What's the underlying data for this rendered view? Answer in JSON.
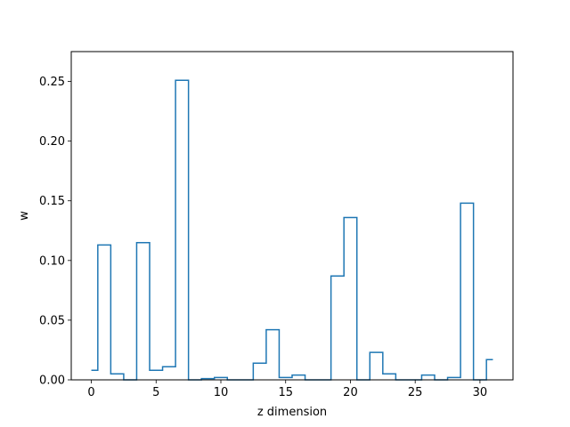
{
  "chart_data": {
    "type": "line",
    "style": "step",
    "xlabel": "z dimension",
    "ylabel": "w",
    "xlim": [
      -1.55,
      32.55
    ],
    "ylim": [
      0,
      0.275
    ],
    "grid": false,
    "line_color": "#1f77b4",
    "x_ticks": [
      0,
      5,
      10,
      15,
      20,
      25,
      30
    ],
    "y_ticks": [
      0.0,
      0.05,
      0.1,
      0.15,
      0.2,
      0.25
    ],
    "x_tick_labels": [
      "0",
      "5",
      "10",
      "15",
      "20",
      "25",
      "30"
    ],
    "y_tick_labels": [
      "0.00",
      "0.05",
      "0.10",
      "0.15",
      "0.20",
      "0.25"
    ],
    "series": [
      {
        "x": [
          0,
          1,
          2,
          3,
          4,
          5,
          6,
          7,
          8,
          9,
          10,
          11,
          12,
          13,
          14,
          15,
          16,
          17,
          18,
          19,
          20,
          21,
          22,
          23,
          24,
          25,
          26,
          27,
          28,
          29,
          30,
          31
        ],
        "values": [
          0.008,
          0.113,
          0.005,
          0.0,
          0.115,
          0.008,
          0.011,
          0.251,
          0.0,
          0.001,
          0.002,
          0.0,
          0.0,
          0.014,
          0.042,
          0.002,
          0.004,
          0.0,
          0.0,
          0.087,
          0.136,
          0.0,
          0.023,
          0.005,
          0.0,
          0.0,
          0.004,
          0.0,
          0.002,
          0.148,
          0.0,
          0.017
        ]
      }
    ]
  }
}
